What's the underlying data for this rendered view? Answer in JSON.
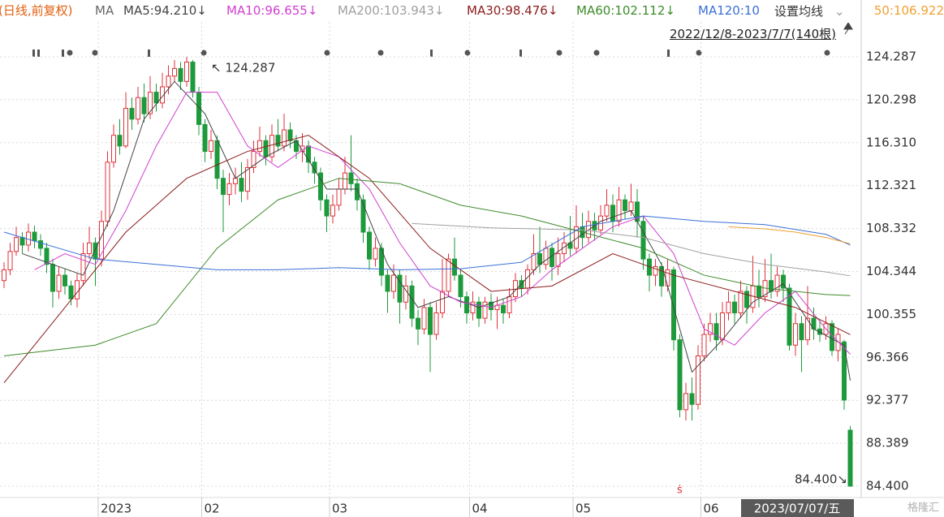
{
  "chart_data": {
    "type": "candlestick",
    "header": {
      "period": "(日线,前复权)",
      "ma": "MA",
      "settings": "设置均线",
      "range": "2022/12/8-2023/7/7(140根)"
    },
    "annotations": {
      "high": "↖ 124.287",
      "low": "84.400↘",
      "cursor_date": "2023/07/07/五"
    },
    "watermark": "格隆汇",
    "up_color": "#e0313b",
    "down_color": "#1c9a3c",
    "grid": true,
    "ylim": [
      83.42,
      127.53
    ],
    "yticks": [
      {
        "value": 84.4,
        "label": "84.400"
      },
      88.389,
      92.377,
      96.366,
      100.355,
      104.344,
      108.332,
      112.321,
      {
        "value": 116.31,
        "label": "116.310"
      },
      120.298,
      124.287
    ],
    "categories": [
      null,
      null,
      null,
      null,
      null,
      null,
      null,
      null,
      null,
      null,
      null,
      null,
      null,
      null,
      null,
      null,
      "2023",
      null,
      null,
      null,
      null,
      null,
      null,
      null,
      null,
      null,
      null,
      null,
      null,
      null,
      null,
      null,
      null,
      "02",
      null,
      null,
      null,
      null,
      null,
      null,
      null,
      null,
      null,
      null,
      null,
      null,
      null,
      null,
      null,
      null,
      null,
      null,
      null,
      null,
      "03",
      null,
      null,
      null,
      null,
      null,
      null,
      null,
      null,
      null,
      null,
      null,
      null,
      null,
      null,
      null,
      null,
      null,
      null,
      null,
      null,
      null,
      null,
      "04",
      null,
      null,
      null,
      null,
      null,
      null,
      null,
      null,
      null,
      null,
      null,
      null,
      null,
      null,
      null,
      null,
      "05",
      null,
      null,
      null,
      null,
      null,
      null,
      null,
      null,
      null,
      null,
      null,
      null,
      null,
      null,
      null,
      null,
      null,
      null,
      null,
      null,
      "06",
      null,
      null,
      null,
      null,
      null,
      null,
      null,
      null,
      null,
      null,
      null,
      null,
      null,
      null,
      null,
      null,
      null,
      null,
      null,
      null,
      null,
      null,
      null,
      null
    ],
    "open": [
      103.5,
      104.5,
      106.2,
      107.5,
      106.8,
      108.0,
      107.2,
      106.5,
      105.0,
      102.5,
      104.0,
      103.0,
      101.8,
      103.5,
      106.0,
      107.0,
      105.5,
      109.0,
      114.5,
      117.0,
      116.0,
      119.5,
      118.5,
      120.5,
      119.0,
      121.0,
      120.0,
      121.5,
      122.5,
      123.2,
      122.0,
      123.8,
      121.0,
      118.0,
      115.5,
      116.5,
      113.0,
      111.5,
      112.5,
      113.0,
      111.8,
      114.0,
      115.5,
      116.5,
      115.0,
      117.0,
      116.0,
      117.5,
      116.5,
      115.5,
      116.0,
      114.5,
      113.5,
      111.0,
      109.5,
      110.5,
      112.0,
      113.5,
      112.5,
      111.0,
      108.0,
      105.5,
      106.5,
      104.0,
      102.5,
      104.0,
      101.5,
      103.0,
      100.0,
      99.0,
      101.0,
      98.5,
      100.5,
      102.5,
      105.5,
      104.0,
      102.0,
      100.5,
      101.5,
      100.0,
      101.5,
      100.8,
      101.2,
      100.5,
      102.0,
      103.5,
      102.8,
      104.5,
      106.0,
      105.0,
      106.5,
      104.8,
      106.0,
      107.0,
      106.5,
      108.5,
      107.5,
      109.0,
      108.2,
      109.5,
      110.5,
      109.0,
      111.0,
      110.0,
      110.8,
      109.0,
      105.5,
      104.0,
      104.8,
      103.0,
      104.5,
      98.0,
      91.5,
      93.0,
      92.0,
      96.5,
      98.5,
      99.5,
      98.0,
      100.5,
      101.5,
      100.5,
      102.5,
      101.0,
      103.0,
      102.0,
      103.5,
      102.5,
      104.0,
      102.8,
      97.5,
      99.5,
      98.0,
      100.0,
      99.0,
      98.5,
      99.5,
      97.0,
      97.8,
      89.6
    ],
    "high": [
      105.2,
      107.0,
      108.5,
      108.0,
      108.8,
      108.6,
      107.8,
      107.0,
      105.5,
      104.8,
      104.6,
      103.5,
      104.2,
      107.0,
      108.5,
      107.5,
      110.0,
      115.5,
      118.0,
      118.5,
      121.0,
      120.5,
      121.5,
      121.8,
      122.5,
      121.8,
      122.8,
      123.5,
      124.0,
      123.8,
      124.287,
      124.0,
      121.5,
      118.5,
      117.5,
      117.0,
      113.8,
      113.5,
      114.0,
      114.5,
      114.8,
      116.5,
      117.8,
      117.0,
      118.0,
      118.5,
      119.0,
      118.2,
      117.0,
      117.2,
      116.5,
      115.0,
      114.0,
      111.5,
      111.5,
      113.0,
      115.0,
      117.0,
      113.0,
      111.5,
      108.5,
      107.5,
      107.0,
      104.5,
      105.0,
      104.5,
      104.0,
      103.5,
      100.8,
      101.8,
      101.5,
      101.5,
      105.5,
      106.0,
      107.5,
      104.5,
      102.5,
      102.5,
      102.0,
      102.0,
      102.3,
      102.0,
      101.8,
      102.8,
      104.2,
      104.0,
      105.0,
      107.8,
      108.5,
      107.2,
      107.0,
      107.5,
      108.0,
      109.5,
      110.5,
      109.8,
      110.0,
      109.8,
      110.5,
      112.0,
      111.5,
      112.2,
      111.5,
      112.5,
      112.0,
      109.5,
      106.0,
      105.5,
      105.2,
      105.5,
      104.8,
      98.5,
      94.0,
      94.5,
      97.5,
      99.5,
      100.5,
      100.5,
      101.5,
      102.5,
      102.2,
      103.5,
      103.0,
      105.8,
      104.5,
      105.5,
      106.0,
      104.8,
      104.5,
      103.2,
      100.5,
      100.2,
      103.0,
      101.0,
      99.8,
      100.2,
      99.8,
      99.0,
      98.0,
      90.0
    ],
    "low": [
      102.8,
      104.0,
      105.8,
      106.0,
      106.2,
      106.5,
      105.8,
      104.2,
      101.0,
      101.8,
      102.2,
      101.2,
      101.0,
      103.0,
      105.5,
      103.0,
      104.8,
      108.5,
      114.0,
      115.2,
      115.8,
      117.5,
      118.0,
      118.2,
      118.5,
      119.2,
      119.5,
      120.8,
      122.0,
      121.2,
      121.5,
      120.5,
      117.0,
      114.5,
      114.8,
      112.0,
      108.0,
      110.5,
      111.5,
      110.8,
      111.0,
      113.5,
      115.0,
      114.2,
      114.5,
      115.5,
      115.5,
      115.8,
      114.8,
      114.5,
      113.5,
      112.5,
      110.0,
      108.0,
      108.8,
      110.0,
      111.5,
      111.8,
      110.0,
      107.0,
      104.5,
      104.8,
      103.0,
      100.5,
      101.8,
      99.5,
      100.8,
      99.2,
      97.5,
      98.5,
      95.0,
      98.0,
      100.0,
      102.0,
      103.5,
      101.0,
      99.5,
      99.8,
      99.2,
      99.5,
      99.8,
      99.0,
      99.5,
      100.0,
      101.5,
      102.0,
      102.2,
      104.0,
      104.2,
      104.5,
      103.5,
      104.0,
      105.2,
      105.8,
      106.0,
      106.5,
      107.0,
      107.2,
      107.8,
      109.0,
      108.0,
      108.5,
      109.2,
      109.5,
      107.5,
      104.5,
      102.5,
      103.0,
      102.0,
      102.5,
      97.0,
      90.8,
      90.5,
      90.5,
      91.5,
      96.0,
      97.8,
      97.0,
      97.5,
      99.8,
      99.5,
      100.0,
      99.5,
      100.5,
      101.0,
      101.5,
      101.8,
      102.0,
      101.5,
      97.0,
      96.5,
      95.0,
      97.5,
      98.0,
      97.8,
      98.0,
      96.5,
      96.0,
      91.5,
      84.4
    ],
    "close": [
      104.5,
      106.2,
      107.5,
      106.8,
      108.0,
      107.2,
      106.5,
      105.0,
      102.5,
      104.0,
      103.0,
      101.8,
      103.5,
      106.0,
      107.0,
      105.5,
      109.0,
      114.5,
      117.0,
      116.0,
      119.5,
      118.5,
      120.5,
      119.0,
      121.0,
      120.0,
      121.5,
      122.5,
      123.2,
      122.0,
      123.8,
      121.0,
      118.0,
      115.5,
      116.5,
      113.0,
      111.5,
      112.5,
      113.0,
      111.8,
      114.0,
      115.5,
      116.5,
      115.0,
      117.0,
      116.0,
      117.5,
      116.5,
      115.5,
      116.0,
      114.5,
      113.5,
      111.0,
      109.5,
      110.5,
      112.0,
      113.5,
      112.5,
      111.0,
      108.0,
      105.5,
      106.5,
      104.0,
      102.5,
      104.0,
      101.5,
      103.0,
      100.0,
      99.0,
      101.0,
      98.5,
      100.5,
      102.5,
      105.5,
      104.0,
      102.0,
      100.5,
      101.5,
      100.0,
      101.5,
      100.8,
      101.2,
      100.5,
      102.0,
      103.5,
      102.8,
      104.5,
      106.0,
      105.0,
      106.5,
      104.8,
      106.0,
      107.0,
      106.5,
      108.5,
      107.5,
      109.0,
      108.2,
      109.5,
      110.5,
      109.0,
      111.0,
      110.0,
      110.8,
      109.0,
      105.5,
      104.0,
      104.8,
      103.0,
      104.5,
      98.0,
      91.5,
      93.0,
      92.0,
      96.5,
      98.5,
      99.5,
      98.0,
      100.5,
      101.5,
      100.5,
      102.5,
      101.0,
      103.0,
      102.0,
      103.5,
      102.5,
      104.0,
      102.8,
      97.5,
      99.5,
      98.0,
      100.0,
      99.0,
      98.5,
      99.5,
      97.0,
      98.5,
      92.4,
      84.4
    ],
    "lines": [
      {
        "name": "MA5:94.210↓",
        "color": "#444444",
        "x": [
          3,
          8,
          13,
          18,
          23,
          28,
          33,
          38,
          43,
          48,
          53,
          58,
          63,
          68,
          73,
          78,
          83,
          88,
          93,
          98,
          103,
          108,
          113,
          118,
          123,
          128,
          133,
          138,
          139
        ],
        "values": [
          106,
          105,
          104,
          110,
          118.5,
          122,
          119,
          113,
          115,
          116.5,
          112,
          112,
          105,
          101,
          102,
          101,
          102,
          105,
          107,
          109,
          110,
          105,
          95,
          98,
          101.5,
          103.2,
          99,
          97.5,
          94.21
        ]
      },
      {
        "name": "MA10:96.655↓",
        "color": "#d040d0",
        "x": [
          5,
          10,
          15,
          20,
          25,
          30,
          35,
          40,
          45,
          50,
          55,
          60,
          65,
          70,
          75,
          80,
          85,
          90,
          95,
          100,
          105,
          110,
          115,
          120,
          125,
          130,
          135,
          139
        ],
        "values": [
          104.5,
          106,
          105,
          110,
          116,
          121,
          121,
          116,
          114,
          116,
          115,
          112,
          107,
          103,
          101.5,
          101,
          102,
          104.5,
          106.5,
          108.5,
          109.5,
          106,
          99,
          97.5,
          100.5,
          102.5,
          99,
          96.655
        ]
      },
      {
        "name": "MA200:103.943↓",
        "color": "#a0a0a0",
        "x": [
          67,
          80,
          95,
          105,
          115,
          125,
          135,
          139
        ],
        "values": [
          108.8,
          108.4,
          108.2,
          107.5,
          106,
          105,
          104.3,
          103.943
        ]
      },
      {
        "name": "MA30:98.476↓",
        "color": "#8b1c1c",
        "x": [
          0,
          10,
          20,
          30,
          40,
          50,
          60,
          70,
          80,
          90,
          100,
          105,
          110,
          120,
          130,
          139
        ],
        "values": [
          94,
          101,
          108,
          113,
          115.5,
          117,
          113,
          106.5,
          102.5,
          103,
          106,
          105,
          104,
          102.5,
          101,
          98.476
        ]
      },
      {
        "name": "MA60:102.112↓",
        "color": "#3d8b2a",
        "x": [
          0,
          15,
          25,
          35,
          45,
          55,
          65,
          75,
          85,
          95,
          105,
          115,
          125,
          135,
          139
        ],
        "values": [
          96.5,
          97.5,
          99.5,
          106.5,
          111,
          113,
          112.5,
          110.5,
          109.5,
          108,
          106.5,
          104,
          102.8,
          102.2,
          102.112
        ]
      },
      {
        "name": "MA120:10",
        "color": "#3a6fd8",
        "x": [
          0,
          15,
          25,
          35,
          45,
          55,
          65,
          75,
          85,
          95,
          105,
          115,
          125,
          135,
          139
        ],
        "values": [
          108,
          105.5,
          105,
          104.5,
          104.5,
          104.7,
          104.5,
          104.6,
          105.2,
          108.5,
          109.5,
          109,
          108.7,
          107.8,
          106.8
        ]
      },
      {
        "name": "50:106.922",
        "color": "#f0a030",
        "x": [
          119,
          125,
          130,
          135,
          139
        ],
        "values": [
          108.5,
          108.3,
          108,
          107.5,
          106.922
        ]
      }
    ]
  }
}
